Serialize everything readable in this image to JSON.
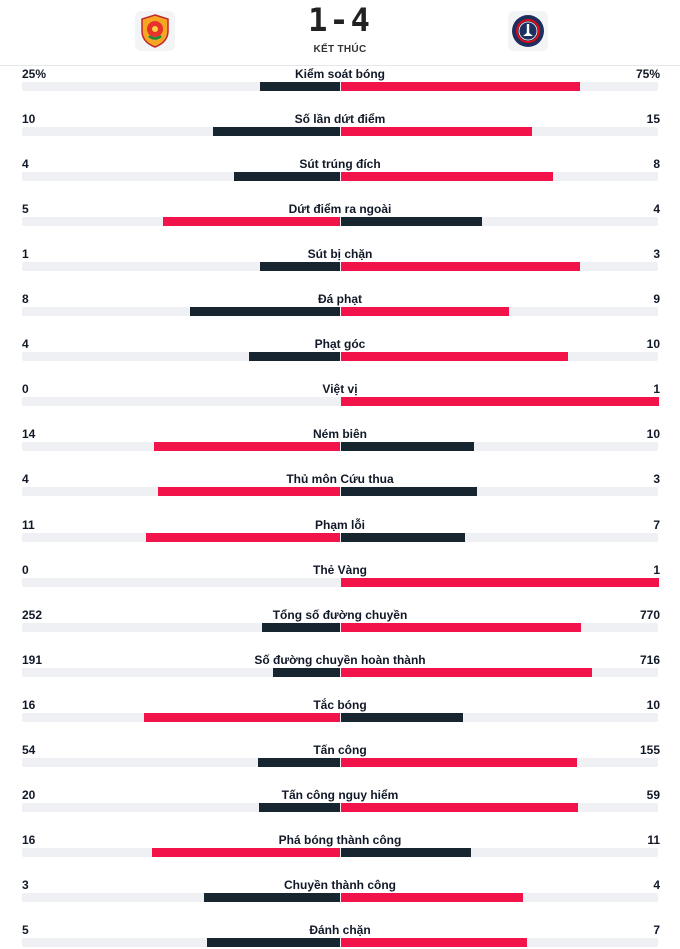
{
  "match": {
    "score": "1-4",
    "status": "KẾT THÚC",
    "home_logo_icon": "club-crest-icon",
    "away_logo_icon": "psg-crest-icon"
  },
  "colors": {
    "winner": "#f2134b",
    "loser": "#172530",
    "track": "#eef0f3"
  },
  "stats": [
    {
      "label": "Kiểm soát bóng",
      "home": "25%",
      "away": "75%",
      "home_val": 25,
      "away_val": 75
    },
    {
      "label": "Số lần dứt điểm",
      "home": "10",
      "away": "15",
      "home_val": 10,
      "away_val": 15
    },
    {
      "label": "Sút trúng đích",
      "home": "4",
      "away": "8",
      "home_val": 4,
      "away_val": 8
    },
    {
      "label": "Dứt điểm ra ngoài",
      "home": "5",
      "away": "4",
      "home_val": 5,
      "away_val": 4
    },
    {
      "label": "Sút bị chặn",
      "home": "1",
      "away": "3",
      "home_val": 1,
      "away_val": 3
    },
    {
      "label": "Đá phạt",
      "home": "8",
      "away": "9",
      "home_val": 8,
      "away_val": 9
    },
    {
      "label": "Phạt góc",
      "home": "4",
      "away": "10",
      "home_val": 4,
      "away_val": 10
    },
    {
      "label": "Việt vị",
      "home": "0",
      "away": "1",
      "home_val": 0,
      "away_val": 1
    },
    {
      "label": "Ném biên",
      "home": "14",
      "away": "10",
      "home_val": 14,
      "away_val": 10
    },
    {
      "label": "Thủ môn Cứu thua",
      "home": "4",
      "away": "3",
      "home_val": 4,
      "away_val": 3
    },
    {
      "label": "Phạm lỗi",
      "home": "11",
      "away": "7",
      "home_val": 11,
      "away_val": 7
    },
    {
      "label": "Thẻ Vàng",
      "home": "0",
      "away": "1",
      "home_val": 0,
      "away_val": 1
    },
    {
      "label": "Tổng số đường chuyền",
      "home": "252",
      "away": "770",
      "home_val": 252,
      "away_val": 770
    },
    {
      "label": "Số đường chuyền hoàn thành",
      "home": "191",
      "away": "716",
      "home_val": 191,
      "away_val": 716
    },
    {
      "label": "Tắc bóng",
      "home": "16",
      "away": "10",
      "home_val": 16,
      "away_val": 10
    },
    {
      "label": "Tấn công",
      "home": "54",
      "away": "155",
      "home_val": 54,
      "away_val": 155
    },
    {
      "label": "Tấn công nguy hiểm",
      "home": "20",
      "away": "59",
      "home_val": 20,
      "away_val": 59
    },
    {
      "label": "Phá bóng thành công",
      "home": "16",
      "away": "11",
      "home_val": 16,
      "away_val": 11
    },
    {
      "label": "Chuyền thành công",
      "home": "3",
      "away": "4",
      "home_val": 3,
      "away_val": 4
    },
    {
      "label": "Đánh chặn",
      "home": "5",
      "away": "7",
      "home_val": 5,
      "away_val": 7
    }
  ]
}
